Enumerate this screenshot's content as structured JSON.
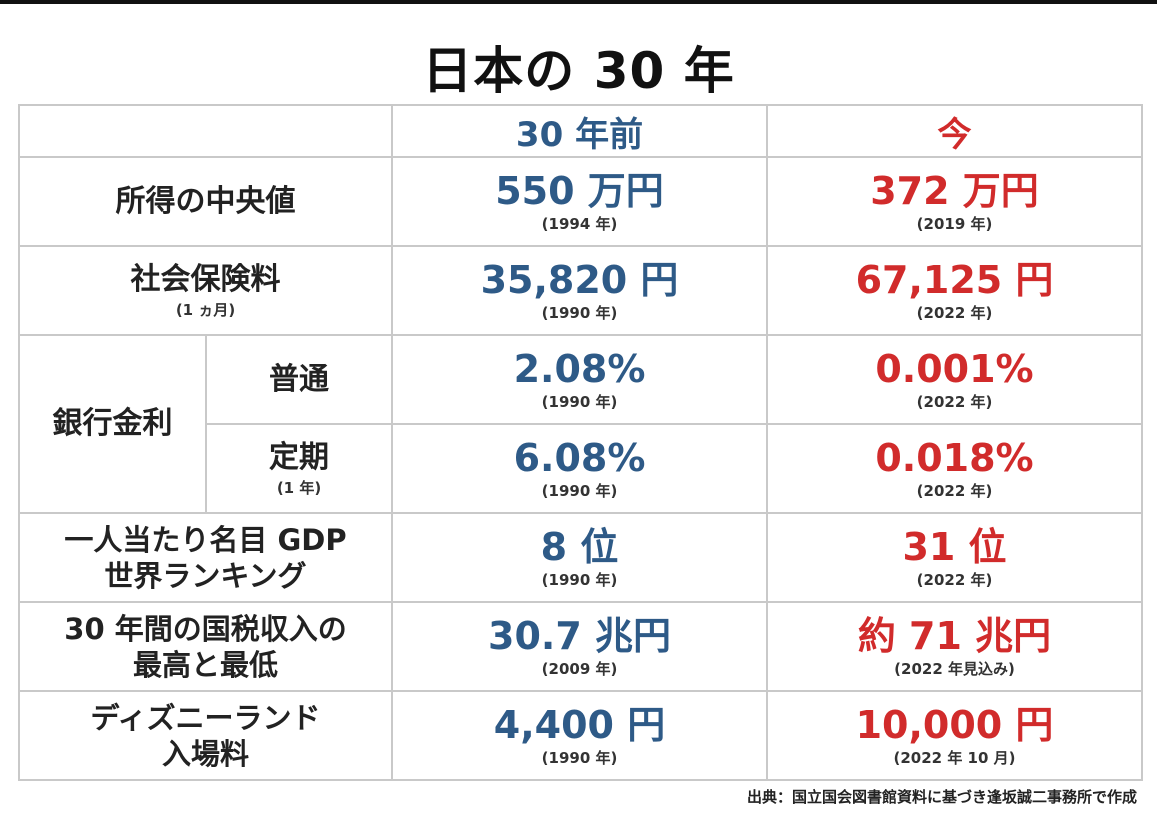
{
  "title": "日本の 30 年",
  "header": {
    "then": "30 年前",
    "now": "今"
  },
  "rows": {
    "income": {
      "label": "所得の中央値",
      "then_value": "550 万円",
      "then_year": "(1994 年)",
      "now_value": "372 万円",
      "now_year": "(2019 年)"
    },
    "social_insurance": {
      "label": "社会保険料",
      "sub": "(1 ヵ月)",
      "then_value": "35,820 円",
      "then_year": "(1990 年)",
      "now_value": "67,125 円",
      "now_year": "(2022 年)"
    },
    "bank_rate": {
      "label": "銀行金利",
      "ordinary": {
        "label": "普通",
        "then_value": "2.08%",
        "then_year": "(1990 年)",
        "now_value": "0.001%",
        "now_year": "(2022 年)"
      },
      "fixed": {
        "label": "定期",
        "sub": "(1 年)",
        "then_value": "6.08%",
        "then_year": "(1990 年)",
        "now_value": "0.018%",
        "now_year": "(2022 年)"
      }
    },
    "gdp": {
      "label_line1": "一人当たり名目 GDP",
      "label_line2": "世界ランキング",
      "then_value": "8 位",
      "then_year": "(1990 年)",
      "now_value": "31 位",
      "now_year": "(2022 年)"
    },
    "tax": {
      "label_line1": "30 年間の国税収入の",
      "label_line2": "最高と最低",
      "then_value": "30.7 兆円",
      "then_year": "(2009 年)",
      "now_value": "約 71 兆円",
      "now_year": "(2022 年見込み)"
    },
    "disney": {
      "label_line1": "ディズニーランド",
      "label_line2": "入場料",
      "then_value": "4,400 円",
      "then_year": "(1990 年)",
      "now_value": "10,000 円",
      "now_year": "(2022 年 10 月)"
    }
  },
  "source": "出典：国立国会図書館資料に基づき逢坂誠二事務所で作成",
  "colors": {
    "then": "#2e5a87",
    "now": "#d12b2b",
    "border": "#c9c9c9"
  }
}
